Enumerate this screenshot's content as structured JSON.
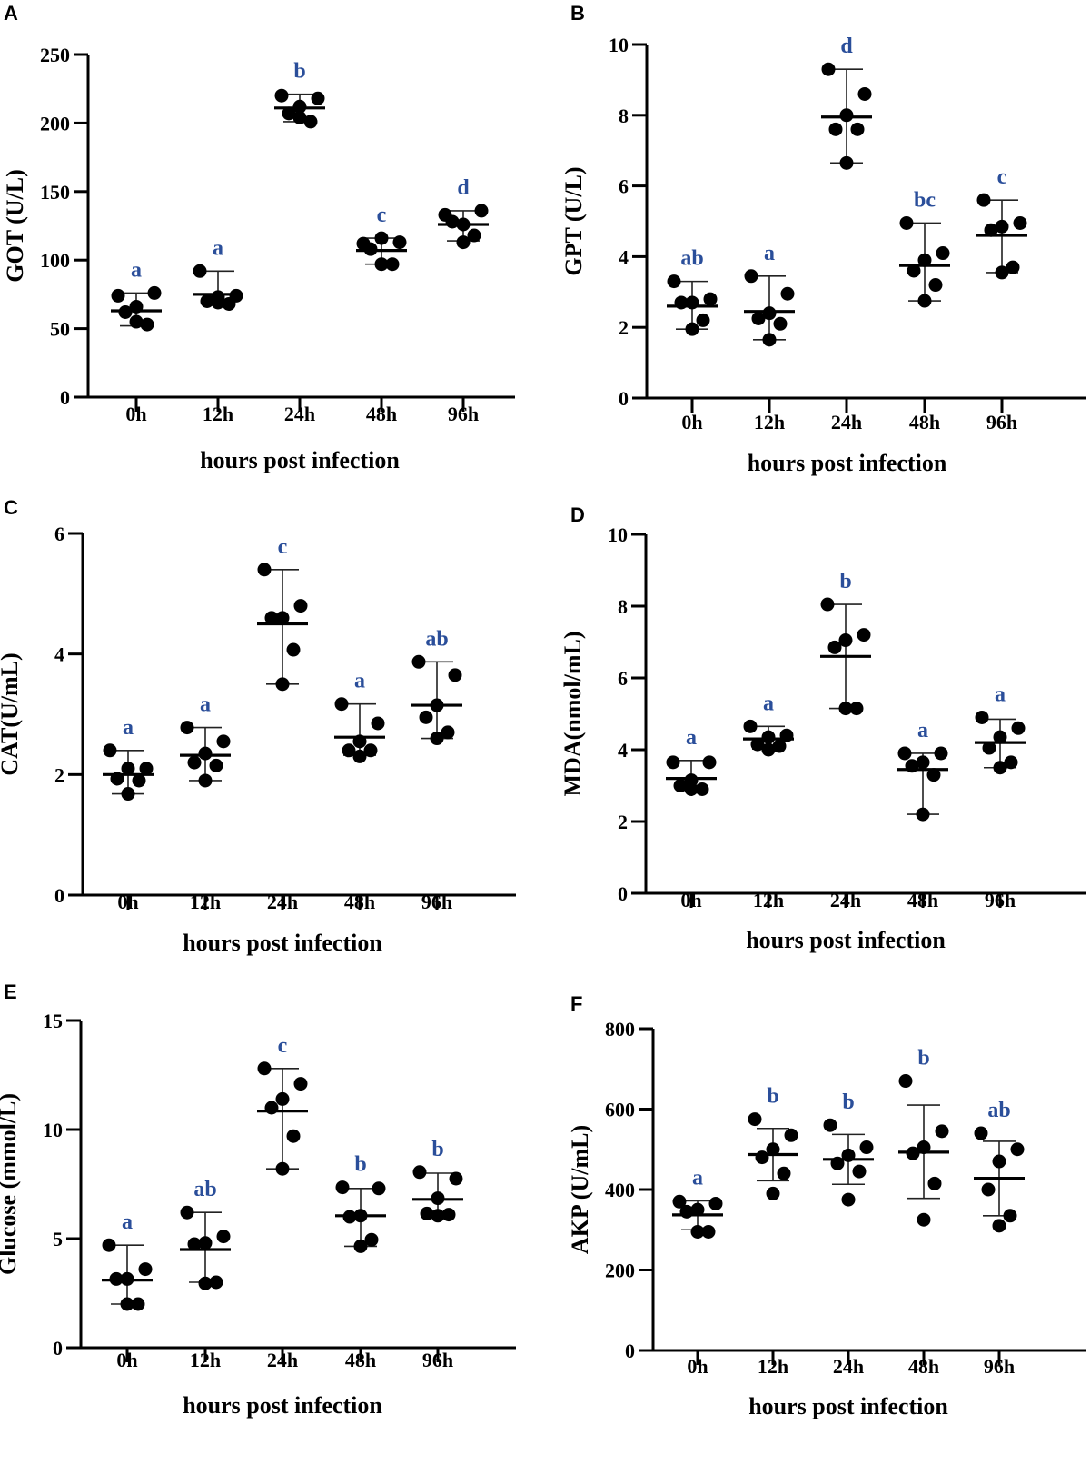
{
  "figure": {
    "significance_color": "#2a4e9a",
    "point_color": "#000000"
  },
  "chart_data": [
    {
      "panel": "A",
      "type": "scatter",
      "title": "",
      "xlabel": "hours post infection",
      "ylabel": "GOT (U/L)",
      "categories": [
        "0h",
        "12h",
        "24h",
        "48h",
        "96h"
      ],
      "ylim": [
        0,
        250
      ],
      "yticks": [
        0,
        50,
        100,
        150,
        200,
        250
      ],
      "grid": false,
      "groups": [
        {
          "category": "0h",
          "points": [
            74,
            76,
            66,
            62,
            53,
            55
          ],
          "mean": 63,
          "err_low": 52,
          "err_high": 76,
          "significance": "a"
        },
        {
          "category": "12h",
          "points": [
            92,
            74,
            73,
            70,
            68,
            69
          ],
          "mean": 75,
          "err_low": 68,
          "err_high": 92,
          "significance": "a"
        },
        {
          "category": "24h",
          "points": [
            220,
            218,
            212,
            207,
            201,
            204
          ],
          "mean": 211,
          "err_low": 201,
          "err_high": 221,
          "significance": "b"
        },
        {
          "category": "48h",
          "points": [
            112,
            113,
            116,
            108,
            97,
            97
          ],
          "mean": 107,
          "err_low": 97,
          "err_high": 116,
          "significance": "c"
        },
        {
          "category": "96h",
          "points": [
            133,
            136,
            126,
            128,
            118,
            113
          ],
          "mean": 126,
          "err_low": 114,
          "err_high": 136,
          "significance": "d"
        }
      ]
    },
    {
      "panel": "B",
      "type": "scatter",
      "title": "",
      "xlabel": "hours post infection",
      "ylabel": "GPT (U/L)",
      "categories": [
        "0h",
        "12h",
        "24h",
        "48h",
        "96h"
      ],
      "ylim": [
        0,
        10
      ],
      "yticks": [
        0,
        2,
        4,
        6,
        8,
        10
      ],
      "grid": false,
      "groups": [
        {
          "category": "0h",
          "points": [
            3.3,
            2.8,
            2.7,
            2.7,
            2.2,
            1.95
          ],
          "mean": 2.6,
          "err_low": 1.95,
          "err_high": 3.3,
          "significance": "ab"
        },
        {
          "category": "12h",
          "points": [
            3.45,
            2.95,
            2.4,
            2.25,
            2.1,
            1.65
          ],
          "mean": 2.45,
          "err_low": 1.65,
          "err_high": 3.45,
          "significance": "a"
        },
        {
          "category": "24h",
          "points": [
            9.3,
            8.6,
            8.0,
            7.6,
            7.6,
            6.65
          ],
          "mean": 7.95,
          "err_low": 6.65,
          "err_high": 9.3,
          "significance": "d"
        },
        {
          "category": "48h",
          "points": [
            4.95,
            4.1,
            3.9,
            3.6,
            3.2,
            2.75
          ],
          "mean": 3.75,
          "err_low": 2.75,
          "err_high": 4.95,
          "significance": "bc"
        },
        {
          "category": "96h",
          "points": [
            5.6,
            4.95,
            4.85,
            4.75,
            3.7,
            3.55
          ],
          "mean": 4.6,
          "err_low": 3.55,
          "err_high": 5.6,
          "significance": "c"
        }
      ]
    },
    {
      "panel": "C",
      "type": "scatter",
      "title": "",
      "xlabel": "hours post infection",
      "ylabel": "CAT(U/mL)",
      "categories": [
        "0h",
        "12h",
        "24h",
        "48h",
        "96h"
      ],
      "ylim": [
        0,
        6
      ],
      "yticks": [
        0,
        2,
        4,
        6
      ],
      "grid": false,
      "groups": [
        {
          "category": "0h",
          "points": [
            2.4,
            2.1,
            2.1,
            1.93,
            1.9,
            1.68
          ],
          "mean": 2.0,
          "err_low": 1.68,
          "err_high": 2.4,
          "significance": "a"
        },
        {
          "category": "12h",
          "points": [
            2.78,
            2.55,
            2.35,
            2.2,
            2.15,
            1.9
          ],
          "mean": 2.32,
          "err_low": 1.9,
          "err_high": 2.78,
          "significance": "a"
        },
        {
          "category": "24h",
          "points": [
            5.4,
            4.8,
            4.6,
            4.6,
            4.07,
            3.5
          ],
          "mean": 4.5,
          "err_low": 3.5,
          "err_high": 5.4,
          "significance": "c"
        },
        {
          "category": "48h",
          "points": [
            3.17,
            2.85,
            2.55,
            2.4,
            2.4,
            2.3
          ],
          "mean": 2.62,
          "err_low": 2.32,
          "err_high": 3.17,
          "significance": "a"
        },
        {
          "category": "96h",
          "points": [
            3.87,
            3.65,
            3.15,
            2.95,
            2.7,
            2.6
          ],
          "mean": 3.15,
          "err_low": 2.6,
          "err_high": 3.87,
          "significance": "ab"
        }
      ]
    },
    {
      "panel": "D",
      "type": "scatter",
      "title": "",
      "xlabel": "hours post infection",
      "ylabel": "MDA(nmol/mL)",
      "categories": [
        "0h",
        "12h",
        "24h",
        "48h",
        "96h"
      ],
      "ylim": [
        0,
        10
      ],
      "yticks": [
        0,
        2,
        4,
        6,
        8,
        10
      ],
      "grid": false,
      "groups": [
        {
          "category": "0h",
          "points": [
            3.65,
            3.65,
            3.15,
            3.0,
            2.9,
            2.9
          ],
          "mean": 3.2,
          "err_low": 2.95,
          "err_high": 3.7,
          "significance": "a"
        },
        {
          "category": "12h",
          "points": [
            4.65,
            4.4,
            4.35,
            4.15,
            4.1,
            4.0
          ],
          "mean": 4.3,
          "err_low": 4.02,
          "err_high": 4.65,
          "significance": "a"
        },
        {
          "category": "24h",
          "points": [
            8.05,
            7.2,
            7.05,
            6.85,
            5.15,
            5.15
          ],
          "mean": 6.6,
          "err_low": 5.15,
          "err_high": 8.05,
          "significance": "b"
        },
        {
          "category": "48h",
          "points": [
            3.9,
            3.9,
            3.65,
            3.55,
            3.3,
            2.2
          ],
          "mean": 3.45,
          "err_low": 2.2,
          "err_high": 3.9,
          "significance": "a"
        },
        {
          "category": "96h",
          "points": [
            4.9,
            4.6,
            4.35,
            4.05,
            3.65,
            3.5
          ],
          "mean": 4.2,
          "err_low": 3.5,
          "err_high": 4.85,
          "significance": "a"
        }
      ]
    },
    {
      "panel": "E",
      "type": "scatter",
      "title": "",
      "xlabel": "hours post infection",
      "ylabel": "Glucose (mmol/L)",
      "categories": [
        "0h",
        "12h",
        "24h",
        "48h",
        "96h"
      ],
      "ylim": [
        0,
        15
      ],
      "yticks": [
        0,
        5,
        10,
        15
      ],
      "grid": false,
      "groups": [
        {
          "category": "0h",
          "points": [
            4.7,
            3.6,
            3.15,
            3.15,
            2.0,
            2.0
          ],
          "mean": 3.1,
          "err_low": 2.0,
          "err_high": 4.7,
          "significance": "a"
        },
        {
          "category": "12h",
          "points": [
            6.2,
            5.1,
            4.8,
            4.75,
            3.0,
            2.95
          ],
          "mean": 4.5,
          "err_low": 3.0,
          "err_high": 6.2,
          "significance": "ab"
        },
        {
          "category": "24h",
          "points": [
            12.8,
            12.1,
            11.4,
            11.0,
            9.7,
            8.2
          ],
          "mean": 10.85,
          "err_low": 8.2,
          "err_high": 12.8,
          "significance": "c"
        },
        {
          "category": "48h",
          "points": [
            7.35,
            7.3,
            6.05,
            6.0,
            4.95,
            4.65
          ],
          "mean": 6.05,
          "err_low": 4.65,
          "err_high": 7.3,
          "significance": "b"
        },
        {
          "category": "96h",
          "points": [
            8.05,
            7.75,
            6.85,
            6.15,
            6.1,
            6.05
          ],
          "mean": 6.8,
          "err_low": 6.05,
          "err_high": 8.0,
          "significance": "b"
        }
      ]
    },
    {
      "panel": "F",
      "type": "scatter",
      "title": "",
      "xlabel": "hours post infection",
      "ylabel": "AKP (U/mL)",
      "categories": [
        "0h",
        "12h",
        "24h",
        "48h",
        "96h"
      ],
      "ylim": [
        0,
        800
      ],
      "yticks": [
        0,
        200,
        400,
        600,
        800
      ],
      "grid": false,
      "groups": [
        {
          "category": "0h",
          "points": [
            370,
            365,
            350,
            345,
            295,
            295
          ],
          "mean": 337,
          "err_low": 300,
          "err_high": 372,
          "significance": "a"
        },
        {
          "category": "12h",
          "points": [
            575,
            535,
            500,
            480,
            440,
            390
          ],
          "mean": 487,
          "err_low": 422,
          "err_high": 552,
          "significance": "b"
        },
        {
          "category": "24h",
          "points": [
            560,
            505,
            485,
            465,
            445,
            375
          ],
          "mean": 475,
          "err_low": 413,
          "err_high": 537,
          "significance": "b"
        },
        {
          "category": "48h",
          "points": [
            670,
            545,
            505,
            490,
            415,
            325
          ],
          "mean": 493,
          "err_low": 378,
          "err_high": 610,
          "significance": "b"
        },
        {
          "category": "96h",
          "points": [
            540,
            500,
            470,
            400,
            335,
            310
          ],
          "mean": 428,
          "err_low": 335,
          "err_high": 520,
          "significance": "ab"
        }
      ]
    }
  ]
}
